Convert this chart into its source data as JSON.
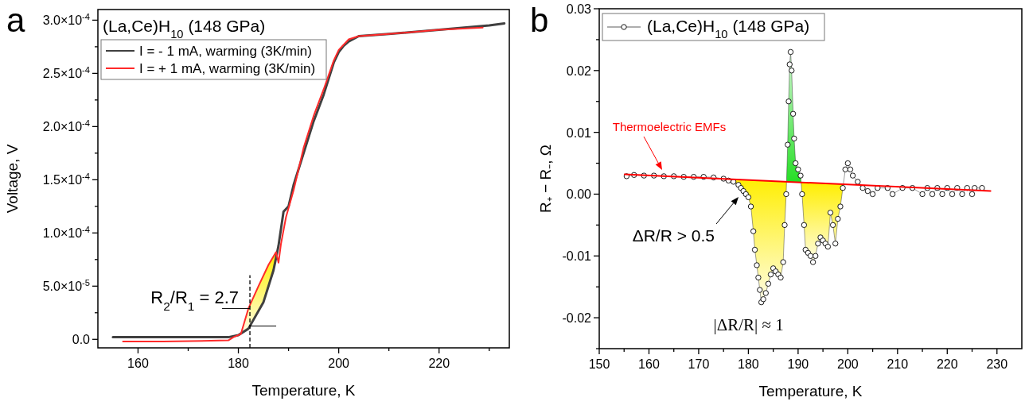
{
  "chart_data": [
    {
      "type": "line",
      "title": "a",
      "xlabel": "Temperature, K",
      "ylabel": "Voltage, V",
      "legend_title": "(La,Ce)H$_{10}$ (148 GPa)",
      "legend": "top left",
      "marker": "none",
      "line_style": "solid",
      "grid": false,
      "xlim": [
        152,
        234
      ],
      "xticks": [
        160,
        {
          "value": 170,
          "label": null
        },
        180,
        {
          "value": 190,
          "label": null
        },
        200,
        {
          "value": 210,
          "label": null
        },
        220,
        {
          "value": 230,
          "label": null
        }
      ],
      "ylim": [
        -8e-06,
        0.00031
      ],
      "yticks": [
        {
          "value": 0,
          "label": "0.0"
        },
        {
          "value": 2.5e-05,
          "label": null
        },
        {
          "value": 5e-05,
          "label": "5.0×10$^{-5}$"
        },
        {
          "value": 7.5e-05,
          "label": null
        },
        {
          "value": 0.0001,
          "label": "1.0×10$^{-4}$"
        },
        {
          "value": 0.000125,
          "label": null
        },
        {
          "value": 0.00015,
          "label": "1.5×10$^{-4}$"
        },
        {
          "value": 0.000175,
          "label": null
        },
        {
          "value": 0.0002,
          "label": "2.0×10$^{-4}$"
        },
        {
          "value": 0.000225,
          "label": null
        },
        {
          "value": 0.00025,
          "label": "2.5×10$^{-4}$"
        },
        {
          "value": 0.000275,
          "label": null
        },
        {
          "value": 0.0003,
          "label": "3.0×10$^{-4}$"
        }
      ],
      "annotations": [
        {
          "text": "R$_{2}$/R$_{1}$ = 2.7",
          "x": 182.3,
          "y": 2.9e-05
        }
      ],
      "series": [
        {
          "name": "I = - 1 mA, warming (3K/min)",
          "color": "#404040",
          "x": [
            155,
            165,
            178,
            180,
            182,
            185,
            187,
            188,
            189,
            190,
            191,
            193,
            195,
            197,
            198,
            199,
            200,
            201,
            202,
            204,
            210,
            220,
            230,
            233
          ],
          "values": [
            2e-06,
            2e-06,
            2e-06,
            4e-06,
            1e-05,
            3.5e-05,
            6.5e-05,
            8.8e-05,
            0.00012,
            0.000125,
            0.000145,
            0.000175,
            0.000205,
            0.00023,
            0.000245,
            0.00026,
            0.00027,
            0.000276,
            0.00028,
            0.000285,
            0.000287,
            0.000291,
            0.000295,
            0.000297
          ]
        },
        {
          "name": "I = + 1 mA, warming (3K/min)",
          "color": "#ff2a2a",
          "x": [
            157,
            165,
            178,
            179,
            180.5,
            182,
            184,
            186,
            187.5,
            188,
            188.5,
            189.5,
            191,
            193,
            195,
            197,
            199,
            200,
            202,
            204,
            210,
            220,
            228.7
          ],
          "values": [
            -2e-06,
            -2e-06,
            -1e-06,
            2e-06,
            5e-06,
            2.9e-05,
            5e-05,
            7e-05,
            8.2e-05,
            7.2e-05,
            9e-05,
            0.000115,
            0.00014,
            0.00018,
            0.00021,
            0.000235,
            0.000262,
            0.000272,
            0.000282,
            0.000285,
            0.000287,
            0.000291,
            0.000293
          ]
        }
      ]
    },
    {
      "type": "line",
      "title": "b",
      "xlabel": "Temperature, K",
      "ylabel": "R₊ − R₋, Ω",
      "legend": "top left",
      "grid": false,
      "marker": "circle",
      "line_style": "solid",
      "xlim": [
        150,
        235
      ],
      "xticks": [
        150,
        {
          "value": 155,
          "label": null
        },
        160,
        {
          "value": 165,
          "label": null
        },
        170,
        {
          "value": 175,
          "label": null
        },
        180,
        {
          "value": 185,
          "label": null
        },
        190,
        {
          "value": 195,
          "label": null
        },
        200,
        {
          "value": 205,
          "label": null
        },
        210,
        {
          "value": 215,
          "label": null
        },
        220,
        {
          "value": 225,
          "label": null
        },
        230
      ],
      "ylim": [
        -0.025,
        0.03
      ],
      "yticks": [
        {
          "value": -0.025,
          "label": null
        },
        -0.02,
        {
          "value": -0.015,
          "label": null
        },
        -0.01,
        {
          "value": -0.005,
          "label": null
        },
        {
          "value": 0,
          "label": "0.00"
        },
        {
          "value": 0.005,
          "label": null
        },
        {
          "value": 0.01,
          "label": "0.01"
        },
        {
          "value": 0.015,
          "label": null
        },
        {
          "value": 0.02,
          "label": "0.02"
        },
        {
          "value": 0.025,
          "label": null
        },
        {
          "value": 0.03,
          "label": "0.03"
        }
      ],
      "annotations": [
        "Thermoelectric EMFs",
        "ΔR/R > 0.5",
        {
          "text": "|ΔR/R| ≈ 1",
          "x": 182.6,
          "y": -0.0175
        }
      ],
      "series": [
        {
          "name": "(La,Ce)H$_{10}$ (148 GPa)",
          "color": "#333333",
          "x": [
            155.5,
            157,
            159,
            161,
            163,
            165,
            167,
            169,
            171,
            173,
            175,
            176,
            177,
            178,
            178.5,
            179,
            179.5,
            180,
            180.5,
            181,
            181.3,
            181.7,
            182,
            182.3,
            182.6,
            183,
            183.5,
            184,
            184.5,
            185,
            185.5,
            186,
            186.5,
            187,
            187.3,
            187.6,
            187.9,
            188.1,
            188.3,
            188.5,
            188.7,
            189,
            189.2,
            189.5,
            190,
            190.5,
            190.8,
            191.2,
            191.5,
            192,
            192.5,
            193,
            193.5,
            194,
            194.5,
            195,
            195.5,
            196,
            196.5,
            197,
            197.5,
            198,
            198.5,
            199,
            199.5,
            200,
            200.5,
            201,
            202,
            203,
            204,
            205,
            206,
            208,
            209,
            211,
            213,
            215,
            216,
            217,
            218,
            219,
            220,
            221,
            222,
            223,
            224,
            225,
            225.5,
            227
          ],
          "values": [
            0.0029,
            0.0031,
            0.003,
            0.003,
            0.0029,
            0.0029,
            0.0028,
            0.0028,
            0.0028,
            0.0027,
            0.0025,
            0.0022,
            0.002,
            0.0015,
            0.001,
            0.0005,
            0,
            -0.0005,
            -0.002,
            -0.006,
            -0.009,
            -0.0115,
            -0.0135,
            -0.0155,
            -0.0175,
            -0.017,
            -0.016,
            -0.0145,
            -0.013,
            -0.012,
            -0.0125,
            -0.013,
            -0.0135,
            -0.011,
            -0.005,
            0,
            0.008,
            0.015,
            0.021,
            0.023,
            0.02,
            0.013,
            0.009,
            0.005,
            0.004,
            0.003,
            0,
            -0.005,
            -0.009,
            -0.0095,
            -0.01,
            -0.011,
            -0.01,
            -0.008,
            -0.007,
            -0.0075,
            -0.008,
            -0.0085,
            -0.003,
            -0.005,
            -0.008,
            -0.004,
            -0.002,
            0.001,
            0.004,
            0.005,
            0.004,
            0.003,
            0.002,
            0.001,
            0.0005,
            0,
            0.001,
            0.001,
            0,
            0.001,
            0.001,
            0,
            0.001,
            0,
            0.001,
            0,
            0.001,
            0,
            0.001,
            0,
            0.001,
            0,
            0.001,
            0.001
          ]
        },
        {
          "type": "line",
          "color": "#ff0000",
          "marker": "none",
          "x": [
            155.1,
            228.7
          ],
          "values": [
            0.0032,
            0.0005
          ]
        }
      ]
    }
  ]
}
